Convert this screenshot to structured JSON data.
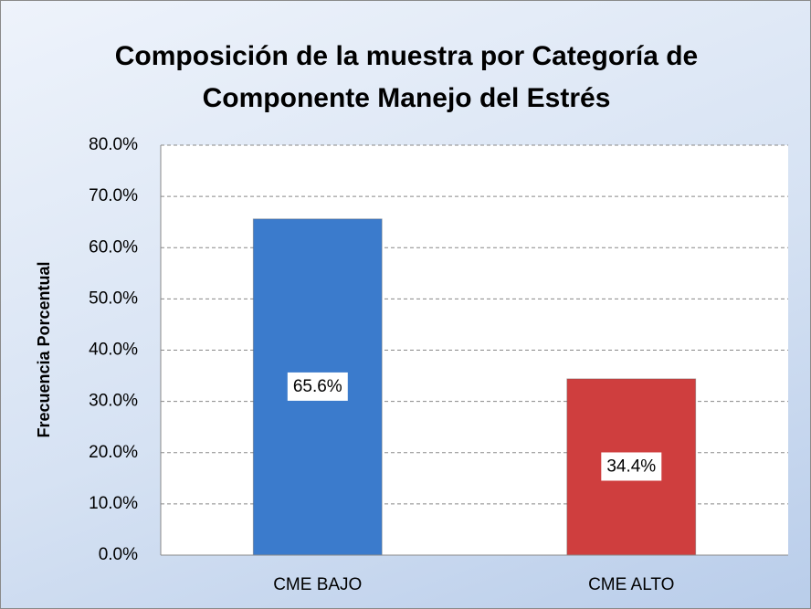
{
  "chart_data": {
    "type": "bar",
    "title": "Composición de la muestra por Categoría de Componente Manejo del Estrés",
    "ylabel": "Frecuencia Porcentual",
    "categories": [
      "CME BAJO",
      "CME ALTO"
    ],
    "values": [
      65.6,
      34.4
    ],
    "value_labels": [
      "65.6%",
      "34.4%"
    ],
    "colors": [
      "#3b7bcc",
      "#cf3e3e"
    ],
    "ylim": [
      0,
      80
    ],
    "yticks": [
      {
        "value": 0,
        "label": "0.0%"
      },
      {
        "value": 10,
        "label": "10.0%"
      },
      {
        "value": 20,
        "label": "20.0%"
      },
      {
        "value": 30,
        "label": "30.0%"
      },
      {
        "value": 40,
        "label": "40.0%"
      },
      {
        "value": 50,
        "label": "50.0%"
      },
      {
        "value": 60,
        "label": "60.0%"
      },
      {
        "value": 70,
        "label": "70.0%"
      },
      {
        "value": 80,
        "label": "80.0%"
      }
    ],
    "grid": true
  }
}
